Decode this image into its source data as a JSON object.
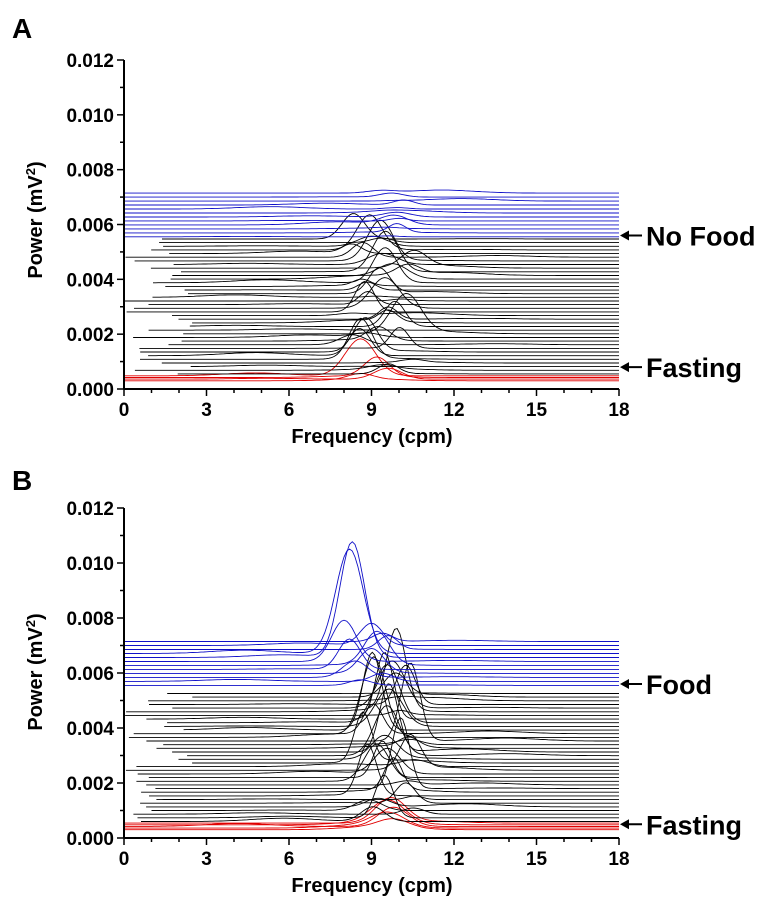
{
  "chart_data": [
    {
      "type": "line",
      "panel_label": "A",
      "title": "",
      "xlabel": "Frequency (cpm)",
      "ylabel_main": "Power (mV",
      "ylabel_sup": "2",
      "ylabel_end": ")",
      "xlim": [
        0,
        18
      ],
      "ylim": [
        0,
        0.012
      ],
      "xticks": [
        "0",
        "3",
        "6",
        "9",
        "12",
        "15",
        "18"
      ],
      "yticks": [
        "0.000",
        "0.002",
        "0.004",
        "0.006",
        "0.008",
        "0.010",
        "0.012"
      ],
      "grid": false,
      "waterfall": {
        "groups": [
          {
            "color": "#e00000",
            "count": 4,
            "baseline_start": 0.0003,
            "baseline_step": 6e-05,
            "peak_x": [
              8.6,
              9.6,
              9.2,
              8.6
            ],
            "peak_h": [
              0.0002,
              0.0004,
              0.0007,
              0.00135
            ],
            "peak_w": [
              0.45,
              0.5,
              0.45,
              0.55
            ]
          },
          {
            "color": "#000000",
            "count": 38,
            "baseline_start": 0.00055,
            "baseline_step": 0.000133,
            "peak_x_range": [
              8.2,
              10.6
            ],
            "peak_h_range": [
              0.0,
              0.0015
            ],
            "peak_w_range": [
              0.3,
              0.55
            ]
          },
          {
            "color": "#1010c8",
            "count": 12,
            "baseline_start": 0.00555,
            "baseline_step": 0.000145,
            "peak_x_range": [
              9.2,
              10.2
            ],
            "peak_h_range": [
              0.0,
              0.0004
            ],
            "peak_w_range": [
              0.3,
              0.5
            ]
          }
        ]
      },
      "annotations": [
        {
          "text": "No Food",
          "y": 0.0056
        },
        {
          "text": "Fasting",
          "y": 0.0008
        }
      ]
    },
    {
      "type": "line",
      "panel_label": "B",
      "title": "",
      "xlabel": "Frequency (cpm)",
      "ylabel_main": "Power (mV",
      "ylabel_sup": "2",
      "ylabel_end": ")",
      "xlim": [
        0,
        18
      ],
      "ylim": [
        0,
        0.012
      ],
      "xticks": [
        "0",
        "3",
        "6",
        "9",
        "12",
        "15",
        "18"
      ],
      "yticks": [
        "0.000",
        "0.002",
        "0.004",
        "0.006",
        "0.008",
        "0.010",
        "0.012"
      ],
      "grid": false,
      "waterfall": {
        "groups": [
          {
            "color": "#e00000",
            "count": 5,
            "baseline_start": 0.0003,
            "baseline_step": 6e-05,
            "peak_x": [
              9.8,
              9.6,
              9.8,
              9.6,
              9.7
            ],
            "peak_h": [
              0.0003,
              0.0005,
              0.0007,
              0.0008,
              0.0009
            ],
            "peak_w": [
              0.55,
              0.6,
              0.55,
              0.6,
              0.55
            ]
          },
          {
            "color": "#000000",
            "count": 36,
            "baseline_start": 0.0006,
            "baseline_step": 0.000133,
            "peak_x_range": [
              8.6,
              10.6
            ],
            "peak_h_range": [
              0.0,
              0.003
            ],
            "peak_w_range": [
              0.3,
              0.5
            ]
          },
          {
            "color": "#1010c8",
            "count": 12,
            "baseline_start": 0.00555,
            "baseline_step": 0.000145,
            "peak_x": [
              8.6,
              9.4,
              8.4,
              9.0,
              8.2,
              9.2,
              8.0,
              8.3,
              8.2,
              9.6,
              9.0,
              9.4
            ],
            "peak_h": [
              0.0002,
              0.0003,
              0.0006,
              0.0009,
              0.0011,
              0.0012,
              0.0015,
              0.0042,
              0.0038,
              0.0005,
              0.0008,
              0.0003
            ],
            "peak_w": [
              0.4,
              0.4,
              0.45,
              0.45,
              0.4,
              0.45,
              0.45,
              0.45,
              0.5,
              0.35,
              0.4,
              0.35
            ]
          }
        ]
      },
      "annotations": [
        {
          "text": "Food",
          "y": 0.0056
        },
        {
          "text": "Fasting",
          "y": 0.0005
        }
      ]
    }
  ]
}
